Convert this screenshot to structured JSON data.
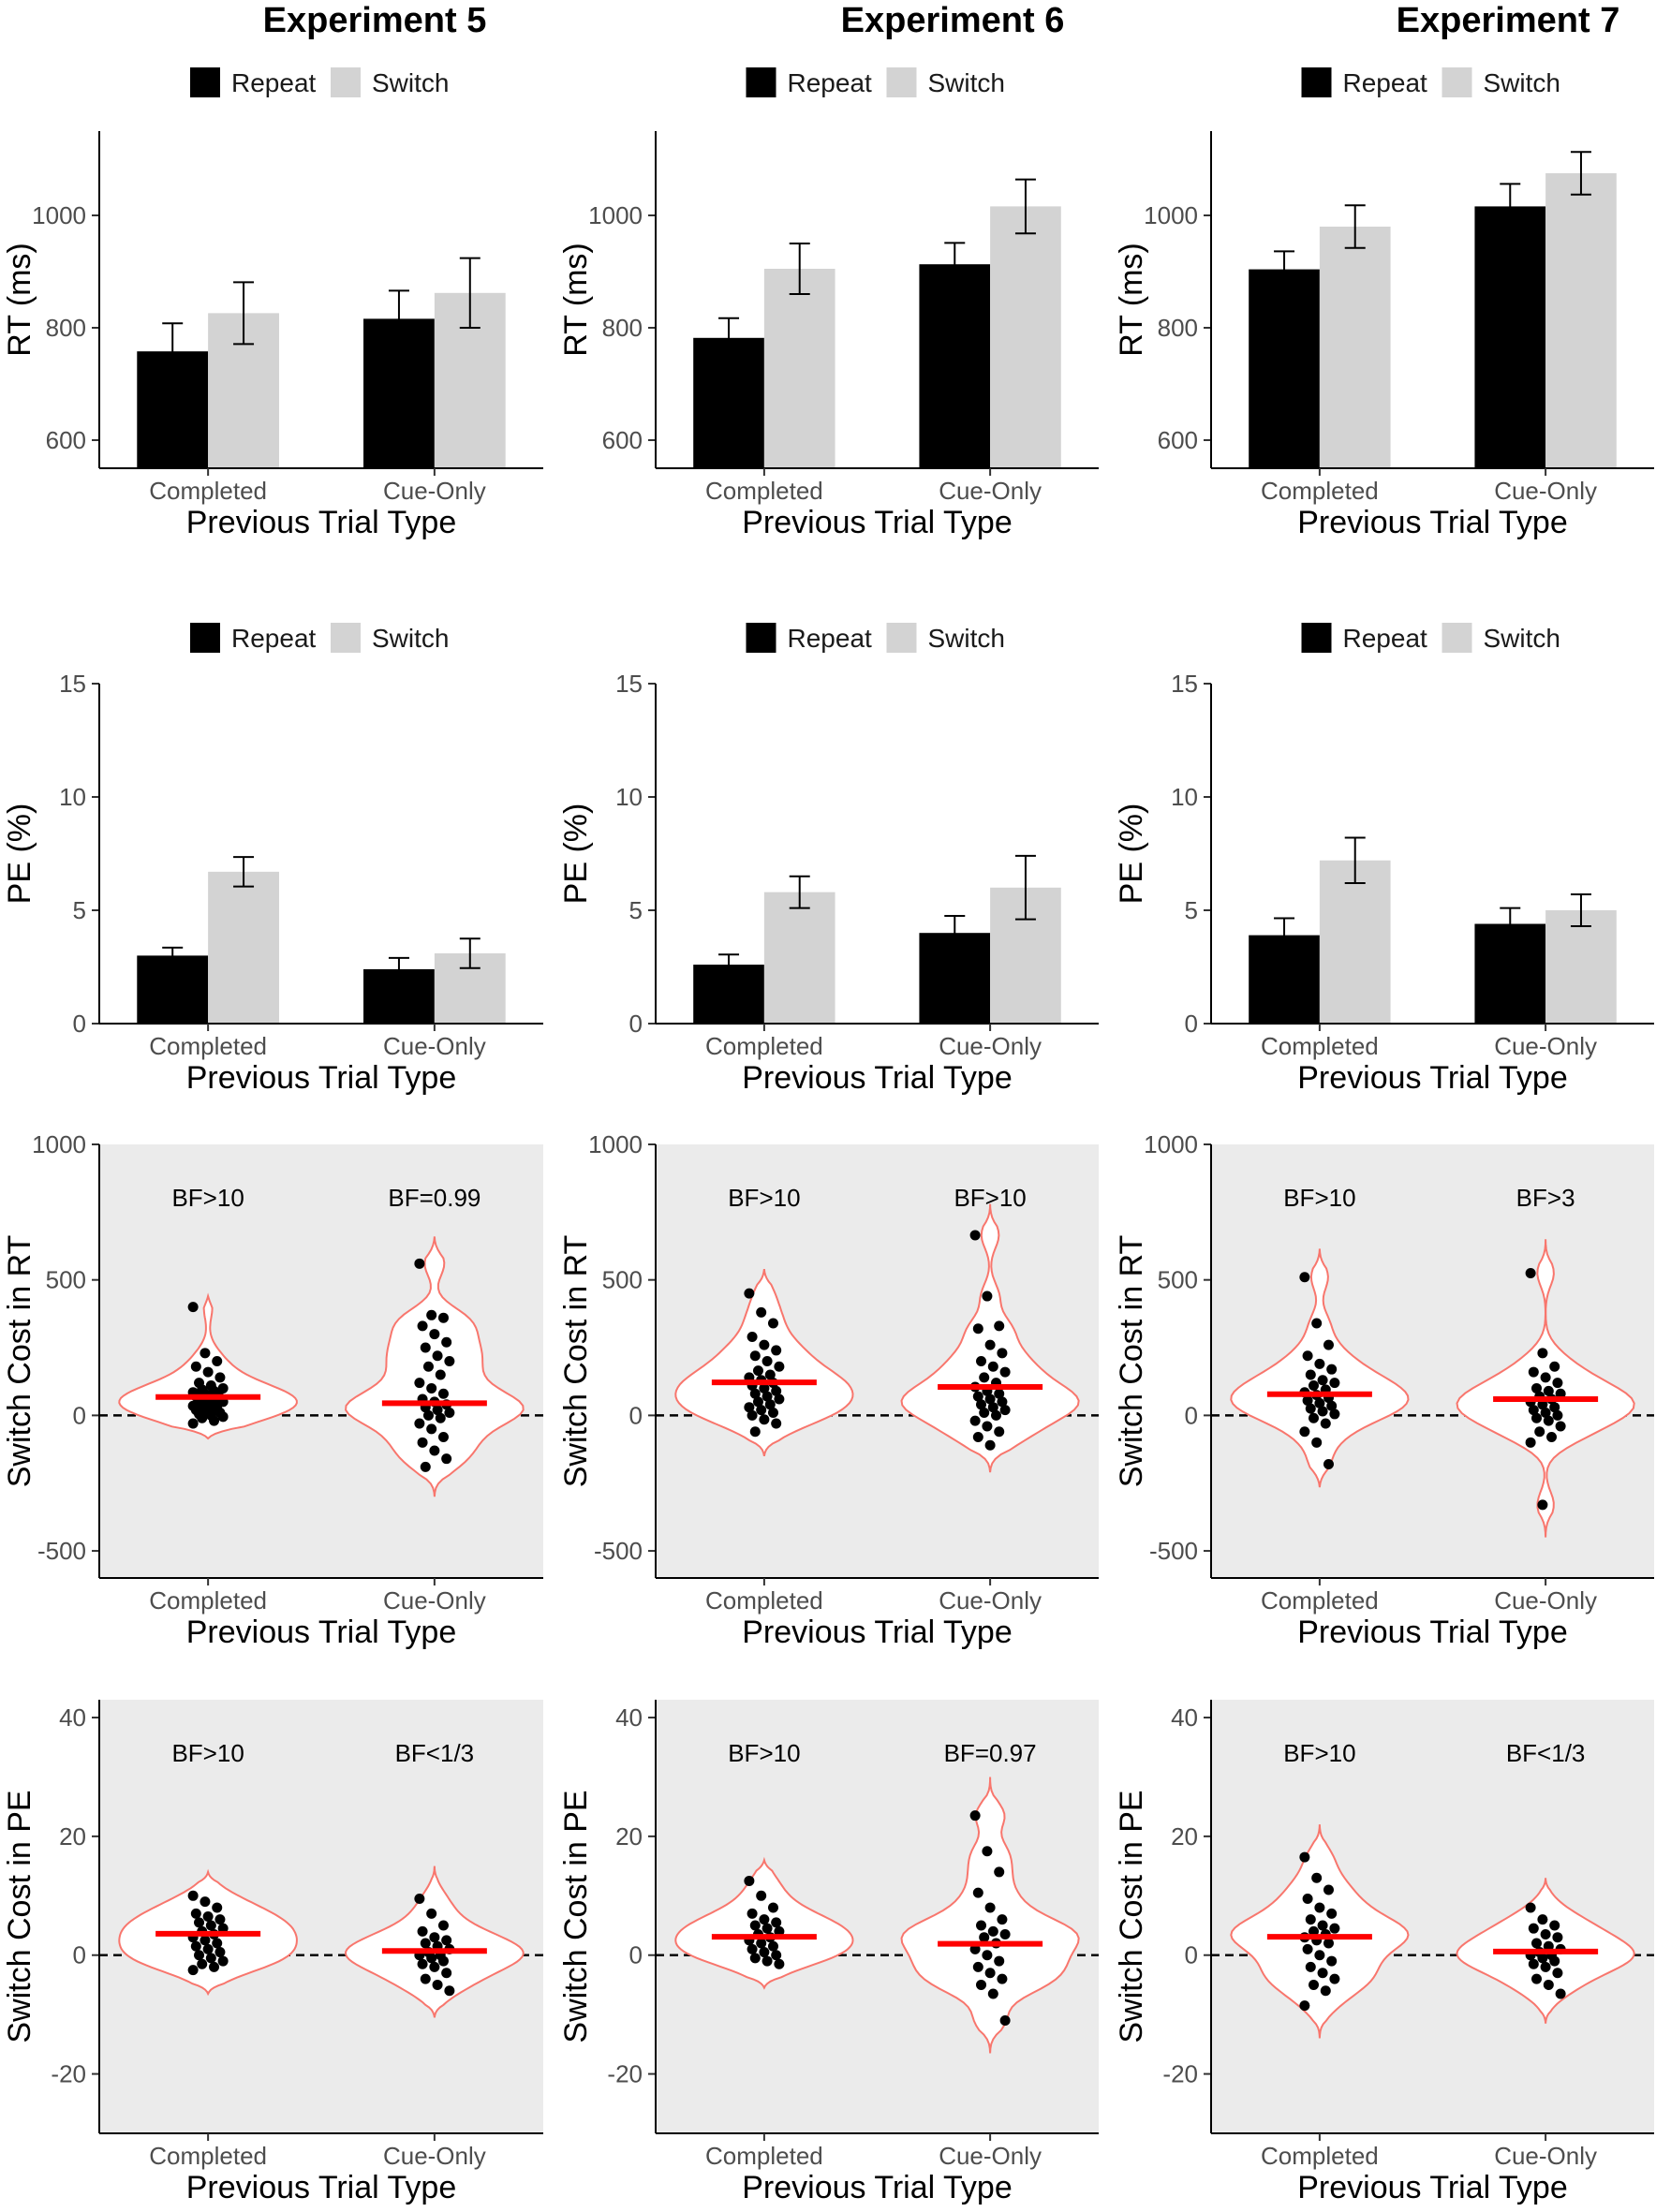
{
  "columns": [
    "Experiment 5",
    "Experiment 6",
    "Experiment 7"
  ],
  "legend": {
    "items": [
      {
        "label": "Repeat",
        "color": "#000000"
      },
      {
        "label": "Switch",
        "color": "#d3d3d3"
      }
    ]
  },
  "categories": [
    "Completed",
    "Cue-Only"
  ],
  "xlabel": "Previous Trial Type",
  "chart_data": [
    {
      "id": "rt-exp5",
      "type": "bar",
      "row": "rt",
      "column": 0,
      "ylabel": "RT (ms)",
      "ylim": [
        550,
        1150
      ],
      "yticks": [
        600,
        800,
        1000
      ],
      "grid": false,
      "categories": [
        "Completed",
        "Cue-Only"
      ],
      "series": [
        {
          "name": "Repeat",
          "values": [
            758,
            816
          ],
          "error": [
            50,
            50
          ]
        },
        {
          "name": "Switch",
          "values": [
            826,
            862
          ],
          "error": [
            55,
            62
          ]
        }
      ]
    },
    {
      "id": "rt-exp6",
      "type": "bar",
      "row": "rt",
      "column": 1,
      "ylabel": "RT (ms)",
      "ylim": [
        550,
        1150
      ],
      "yticks": [
        600,
        800,
        1000
      ],
      "grid": false,
      "categories": [
        "Completed",
        "Cue-Only"
      ],
      "series": [
        {
          "name": "Repeat",
          "values": [
            782,
            913
          ],
          "error": [
            35,
            38
          ]
        },
        {
          "name": "Switch",
          "values": [
            905,
            1016
          ],
          "error": [
            45,
            48
          ]
        }
      ]
    },
    {
      "id": "rt-exp7",
      "type": "bar",
      "row": "rt",
      "column": 2,
      "ylabel": "RT (ms)",
      "ylim": [
        550,
        1150
      ],
      "yticks": [
        600,
        800,
        1000
      ],
      "grid": false,
      "categories": [
        "Completed",
        "Cue-Only"
      ],
      "series": [
        {
          "name": "Repeat",
          "values": [
            904,
            1016
          ],
          "error": [
            32,
            40
          ]
        },
        {
          "name": "Switch",
          "values": [
            980,
            1075
          ],
          "error": [
            38,
            38
          ]
        }
      ]
    },
    {
      "id": "pe-exp5",
      "type": "bar",
      "row": "pe",
      "column": 0,
      "ylabel": "PE (%)",
      "ylim": [
        0,
        15
      ],
      "yticks": [
        0,
        5,
        10,
        15
      ],
      "grid": false,
      "categories": [
        "Completed",
        "Cue-Only"
      ],
      "series": [
        {
          "name": "Repeat",
          "values": [
            3.0,
            2.4
          ],
          "error": [
            0.35,
            0.5
          ]
        },
        {
          "name": "Switch",
          "values": [
            6.7,
            3.1
          ],
          "error": [
            0.65,
            0.65
          ]
        }
      ]
    },
    {
      "id": "pe-exp6",
      "type": "bar",
      "row": "pe",
      "column": 1,
      "ylabel": "PE (%)",
      "ylim": [
        0,
        15
      ],
      "yticks": [
        0,
        5,
        10,
        15
      ],
      "grid": false,
      "categories": [
        "Completed",
        "Cue-Only"
      ],
      "series": [
        {
          "name": "Repeat",
          "values": [
            2.6,
            4.0
          ],
          "error": [
            0.45,
            0.75
          ]
        },
        {
          "name": "Switch",
          "values": [
            5.8,
            6.0
          ],
          "error": [
            0.7,
            1.4
          ]
        }
      ]
    },
    {
      "id": "pe-exp7",
      "type": "bar",
      "row": "pe",
      "column": 2,
      "ylabel": "PE (%)",
      "ylim": [
        0,
        15
      ],
      "yticks": [
        0,
        5,
        10,
        15
      ],
      "grid": false,
      "categories": [
        "Completed",
        "Cue-Only"
      ],
      "series": [
        {
          "name": "Repeat",
          "values": [
            3.9,
            4.4
          ],
          "error": [
            0.75,
            0.7
          ]
        },
        {
          "name": "Switch",
          "values": [
            7.2,
            5.0
          ],
          "error": [
            1.0,
            0.7
          ]
        }
      ]
    },
    {
      "id": "rtcost-exp5",
      "type": "scatter",
      "subtype": "violin",
      "row": "rtcost",
      "column": 0,
      "ylabel": "Switch Cost in RT",
      "ylim": [
        -600,
        1000
      ],
      "yticks": [
        -500,
        0,
        500,
        1000
      ],
      "reference_line": 0,
      "panel_background": "#ebebeb",
      "categories": [
        "Completed",
        "Cue-Only"
      ],
      "groups": [
        {
          "category": "Completed",
          "bf": "BF>10",
          "mean": 68,
          "range": [
            -85,
            440
          ],
          "points": [
            400,
            230,
            200,
            180,
            160,
            140,
            120,
            110,
            100,
            95,
            90,
            85,
            80,
            75,
            70,
            68,
            65,
            60,
            55,
            50,
            45,
            40,
            35,
            30,
            25,
            20,
            15,
            10,
            5,
            0,
            -5,
            -10,
            -20,
            -30
          ]
        },
        {
          "category": "Cue-Only",
          "bf": "BF=0.99",
          "mean": 45,
          "range": [
            -300,
            660
          ],
          "points": [
            560,
            370,
            360,
            330,
            300,
            270,
            250,
            220,
            200,
            180,
            150,
            120,
            100,
            80,
            60,
            50,
            40,
            30,
            20,
            10,
            0,
            -10,
            -30,
            -50,
            -80,
            -100,
            -130,
            -160,
            -190
          ]
        }
      ]
    },
    {
      "id": "rtcost-exp6",
      "type": "scatter",
      "subtype": "violin",
      "row": "rtcost",
      "column": 1,
      "ylabel": "Switch Cost in RT",
      "ylim": [
        -600,
        1000
      ],
      "yticks": [
        -500,
        0,
        500,
        1000
      ],
      "reference_line": 0,
      "panel_background": "#ebebeb",
      "categories": [
        "Completed",
        "Cue-Only"
      ],
      "groups": [
        {
          "category": "Completed",
          "bf": "BF>10",
          "mean": 122,
          "range": [
            -150,
            540
          ],
          "points": [
            450,
            380,
            340,
            290,
            260,
            240,
            220,
            200,
            180,
            165,
            150,
            140,
            130,
            120,
            110,
            100,
            90,
            80,
            70,
            60,
            50,
            40,
            30,
            20,
            10,
            0,
            -15,
            -30,
            -60
          ]
        },
        {
          "category": "Cue-Only",
          "bf": "BF>10",
          "mean": 105,
          "range": [
            -210,
            780
          ],
          "points": [
            665,
            440,
            330,
            320,
            260,
            230,
            200,
            180,
            160,
            140,
            120,
            105,
            90,
            80,
            70,
            60,
            50,
            40,
            30,
            20,
            10,
            0,
            -20,
            -40,
            -60,
            -80,
            -110
          ]
        }
      ]
    },
    {
      "id": "rtcost-exp7",
      "type": "scatter",
      "subtype": "violin",
      "row": "rtcost",
      "column": 2,
      "ylabel": "Switch Cost in RT",
      "ylim": [
        -600,
        1000
      ],
      "yticks": [
        -500,
        0,
        500,
        1000
      ],
      "reference_line": 0,
      "panel_background": "#ebebeb",
      "categories": [
        "Completed",
        "Cue-Only"
      ],
      "groups": [
        {
          "category": "Completed",
          "bf": "BF>10",
          "mean": 78,
          "range": [
            -265,
            615
          ],
          "points": [
            510,
            340,
            260,
            220,
            190,
            170,
            150,
            130,
            120,
            110,
            95,
            85,
            75,
            65,
            55,
            45,
            35,
            25,
            15,
            5,
            -10,
            -30,
            -60,
            -100,
            -180
          ]
        },
        {
          "category": "Cue-Only",
          "bf": "BF>3",
          "mean": 60,
          "range": [
            -450,
            650
          ],
          "points": [
            525,
            230,
            180,
            160,
            140,
            120,
            100,
            90,
            80,
            70,
            60,
            50,
            40,
            30,
            20,
            10,
            0,
            -10,
            -20,
            -40,
            -60,
            -80,
            -100,
            -330
          ]
        }
      ]
    },
    {
      "id": "pecost-exp5",
      "type": "scatter",
      "subtype": "violin",
      "row": "pecost",
      "column": 0,
      "ylabel": "Switch Cost in PE",
      "ylim": [
        -30,
        43
      ],
      "yticks": [
        -20,
        0,
        20,
        40
      ],
      "reference_line": 0,
      "panel_background": "#ebebeb",
      "categories": [
        "Completed",
        "Cue-Only"
      ],
      "groups": [
        {
          "category": "Completed",
          "bf": "BF>10",
          "mean": 3.6,
          "range": [
            -6.5,
            14
          ],
          "points": [
            10,
            9,
            8,
            7,
            6.5,
            6,
            5.5,
            5,
            4.5,
            4,
            3.5,
            3,
            2.5,
            2,
            1.5,
            1,
            0.5,
            0,
            -0.5,
            -1,
            -1.5,
            -2,
            -2.5
          ]
        },
        {
          "category": "Cue-Only",
          "bf": "BF<1/3",
          "mean": 0.7,
          "range": [
            -10.5,
            15
          ],
          "points": [
            9.5,
            7,
            5,
            4,
            3,
            2.5,
            2,
            1.5,
            1,
            0.5,
            0,
            0,
            -0.5,
            -1,
            -1.5,
            -2,
            -3,
            -4,
            -5,
            -6
          ]
        }
      ]
    },
    {
      "id": "pecost-exp6",
      "type": "scatter",
      "subtype": "violin",
      "row": "pecost",
      "column": 1,
      "ylabel": "Switch Cost in PE",
      "ylim": [
        -30,
        43
      ],
      "yticks": [
        -20,
        0,
        20,
        40
      ],
      "reference_line": 0,
      "panel_background": "#ebebeb",
      "categories": [
        "Completed",
        "Cue-Only"
      ],
      "groups": [
        {
          "category": "Completed",
          "bf": "BF>10",
          "mean": 3.1,
          "range": [
            -5.5,
            16
          ],
          "points": [
            12.5,
            10,
            8,
            7,
            6,
            5.5,
            5,
            4.5,
            4,
            3.5,
            3,
            2.5,
            2,
            1.5,
            1,
            0.5,
            0,
            -0.5,
            -1,
            -1.5
          ]
        },
        {
          "category": "Cue-Only",
          "bf": "BF=0.97",
          "mean": 1.9,
          "range": [
            -16.5,
            30
          ],
          "points": [
            23.5,
            17.5,
            14,
            10.5,
            8,
            6,
            5,
            4,
            3.5,
            3,
            2,
            1,
            0,
            -1,
            -2,
            -3,
            -4,
            -5,
            -6.5,
            -11
          ]
        }
      ]
    },
    {
      "id": "pecost-exp7",
      "type": "scatter",
      "subtype": "violin",
      "row": "pecost",
      "column": 2,
      "ylabel": "Switch Cost in PE",
      "ylim": [
        -30,
        43
      ],
      "yticks": [
        -20,
        0,
        20,
        40
      ],
      "reference_line": 0,
      "panel_background": "#ebebeb",
      "categories": [
        "Completed",
        "Cue-Only"
      ],
      "groups": [
        {
          "category": "Completed",
          "bf": "BF>10",
          "mean": 3.1,
          "range": [
            -14,
            22
          ],
          "points": [
            16.5,
            13,
            11,
            9.5,
            8,
            7,
            6,
            5,
            4.5,
            4,
            3.5,
            3,
            2.5,
            2,
            1,
            0,
            -1,
            -2,
            -3,
            -4,
            -5,
            -6,
            -8.5
          ]
        },
        {
          "category": "Cue-Only",
          "bf": "BF<1/3",
          "mean": 0.6,
          "range": [
            -11.5,
            13
          ],
          "points": [
            8,
            6,
            5,
            4.5,
            3.5,
            3,
            2,
            1.5,
            1,
            0.5,
            0,
            0,
            -0.5,
            -1,
            -1.5,
            -2,
            -3,
            -4,
            -5,
            -6.5
          ]
        }
      ]
    }
  ]
}
